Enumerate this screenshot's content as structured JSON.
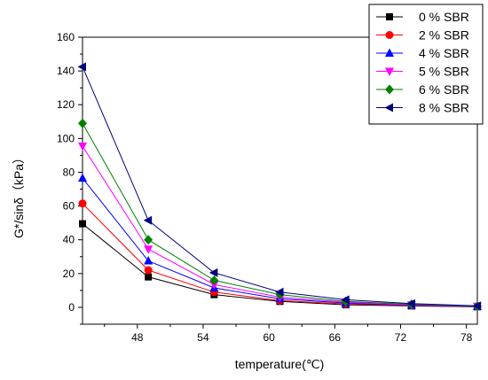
{
  "chart_data": {
    "type": "line",
    "xlabel": "temperature(℃)",
    "ylabel": "G*/sinδ（kPa）",
    "xlim": [
      43,
      79
    ],
    "ylim": [
      -10,
      160
    ],
    "x_ticks": [
      "48",
      "54",
      "60",
      "66",
      "72",
      "78"
    ],
    "x_tick_values": [
      48,
      54,
      60,
      66,
      72,
      78
    ],
    "y_ticks": [
      "0",
      "20",
      "40",
      "60",
      "80",
      "100",
      "120",
      "140",
      "160"
    ],
    "y_tick_values": [
      0,
      20,
      40,
      60,
      80,
      100,
      120,
      140,
      160
    ],
    "x": [
      43,
      49,
      55,
      61,
      67,
      73,
      79
    ],
    "grid": false,
    "legend_position": "top-right",
    "series": [
      {
        "name": "0 % SBR",
        "color": "#000000",
        "marker": "square",
        "values": [
          49.5,
          18,
          7.5,
          3.5,
          1.5,
          0.8,
          0.3
        ]
      },
      {
        "name": "2 % SBR",
        "color": "#ff0000",
        "marker": "circle",
        "values": [
          61.5,
          22,
          9,
          4,
          2,
          1,
          0.4
        ]
      },
      {
        "name": "4 % SBR",
        "color": "#0000ff",
        "marker": "triangle-up",
        "values": [
          76.5,
          27.5,
          11.5,
          5,
          2.5,
          1.2,
          0.5
        ]
      },
      {
        "name": "5 % SBR",
        "color": "#ff00ff",
        "marker": "triangle-down",
        "values": [
          95.5,
          34.5,
          13.5,
          6,
          3,
          1.5,
          0.6
        ]
      },
      {
        "name": "6 % SBR",
        "color": "#008000",
        "marker": "diamond",
        "values": [
          109,
          40,
          16,
          7.5,
          3.5,
          1.8,
          0.7
        ]
      },
      {
        "name": "8 % SBR",
        "color": "#000080",
        "marker": "triangle-left",
        "values": [
          142.5,
          51.5,
          20.5,
          9,
          4.5,
          2.2,
          0.9
        ]
      }
    ]
  }
}
